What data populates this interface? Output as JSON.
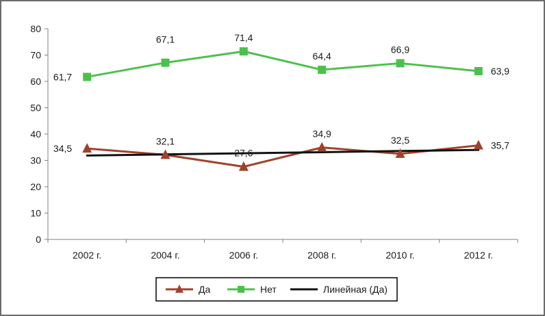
{
  "chart_data": {
    "type": "line",
    "categories": [
      "2002 г.",
      "2004 г.",
      "2006 г.",
      "2008 г.",
      "2010 г.",
      "2012 г."
    ],
    "ylim": [
      0,
      80
    ],
    "yticks": [
      0,
      10,
      20,
      30,
      40,
      50,
      60,
      70,
      80
    ],
    "grid": false,
    "legend_position": "bottom",
    "series": [
      {
        "name": "Да",
        "values": [
          34.5,
          32.1,
          27.6,
          34.9,
          32.5,
          35.7
        ],
        "labels": [
          "34,5",
          "32,1",
          "27,6",
          "34,9",
          "32,5",
          "35,7"
        ],
        "color": "#a0422a",
        "marker": "triangle"
      },
      {
        "name": "Нет",
        "values": [
          61.7,
          67.1,
          71.4,
          64.4,
          66.9,
          63.9
        ],
        "labels": [
          "61,7",
          "67,1",
          "71,4",
          "64,4",
          "66,9",
          "63,9"
        ],
        "color": "#4cc04c",
        "marker": "square"
      },
      {
        "name": "Линейная (Да)",
        "values": [
          31.86,
          32.28,
          32.71,
          33.13,
          33.56,
          33.98
        ],
        "color": "#111111",
        "marker": "none",
        "trendline_of": "Да"
      }
    ]
  }
}
